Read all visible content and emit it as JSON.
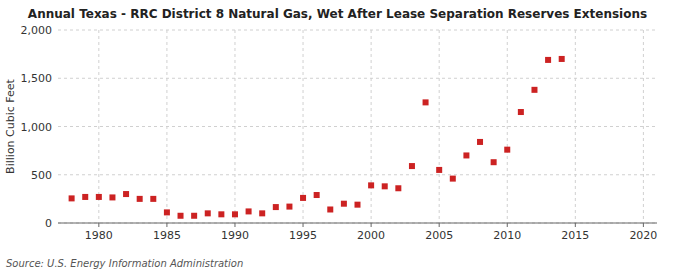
{
  "chart_data": {
    "type": "scatter",
    "title": "Annual Texas - RRC District 8 Natural Gas, Wet After Lease Separation Reserves Extensions",
    "ylabel": "Billion Cubic Feet",
    "source": "Source: U.S. Energy Information Administration",
    "color": "#cc2222",
    "marker": "square",
    "grid": true,
    "xlim": [
      1977,
      2021
    ],
    "ylim": [
      0,
      2000
    ],
    "xticks": [
      1980,
      1985,
      1990,
      1995,
      2000,
      2005,
      2010,
      2015,
      2020
    ],
    "yticks": [
      0,
      500,
      {
        "value": 1000,
        "label": "1,000"
      },
      {
        "value": 1500,
        "label": "1,500"
      },
      {
        "value": 2000,
        "label": "2,000"
      }
    ],
    "x": [
      1978,
      1979,
      1980,
      1981,
      1982,
      1983,
      1984,
      1985,
      1986,
      1987,
      1988,
      1989,
      1990,
      1991,
      1992,
      1993,
      1994,
      1995,
      1996,
      1997,
      1998,
      1999,
      2000,
      2001,
      2002,
      2003,
      2004,
      2005,
      2006,
      2007,
      2008,
      2009,
      2010,
      2011,
      2012,
      2013,
      2014
    ],
    "values": [
      255,
      270,
      270,
      265,
      300,
      250,
      250,
      110,
      75,
      75,
      100,
      90,
      90,
      120,
      100,
      165,
      170,
      260,
      290,
      140,
      200,
      190,
      390,
      380,
      360,
      590,
      1250,
      550,
      460,
      700,
      840,
      630,
      760,
      1150,
      1380,
      1690,
      1700
    ]
  }
}
